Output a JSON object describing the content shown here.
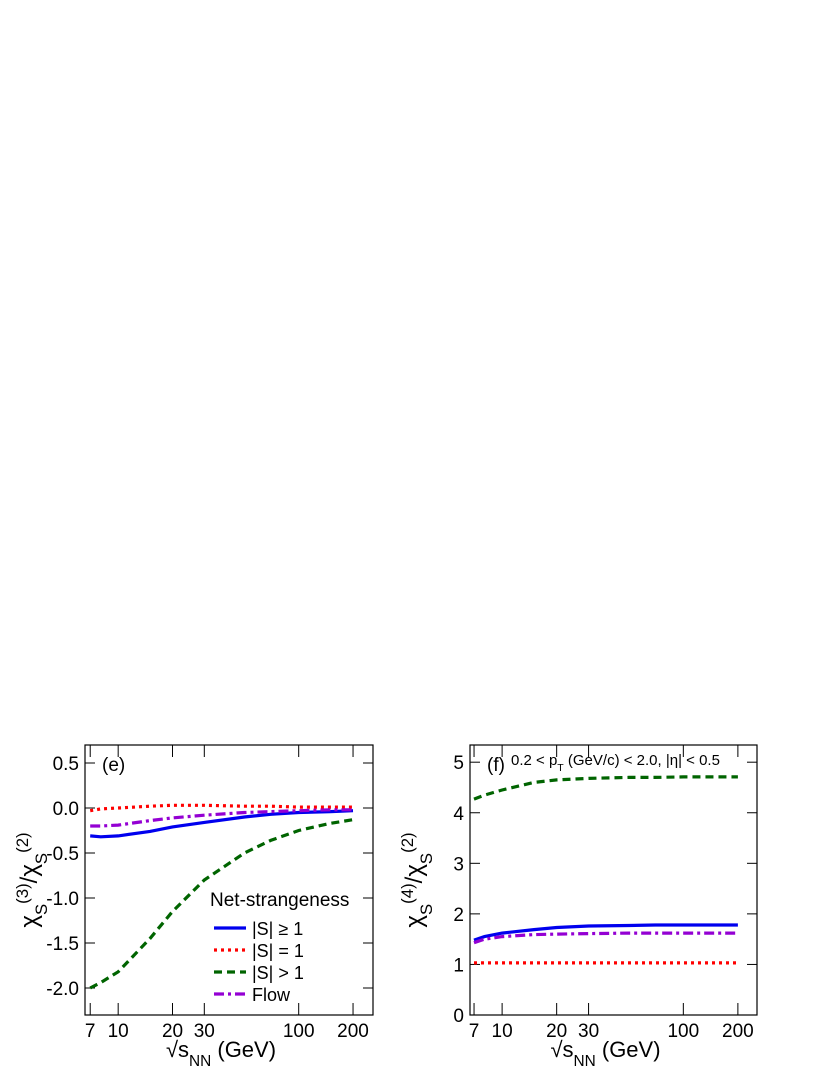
{
  "chart_data": [
    {
      "type": "line",
      "annotation": "(e)",
      "ylabel": [
        "χ",
        "S",
        "(3)",
        "/χ",
        "S",
        "(2)"
      ],
      "xlabel": [
        "√",
        "s",
        "NN",
        " (GeV)"
      ],
      "x": [
        7,
        8,
        10,
        15,
        20,
        30,
        50,
        70,
        100,
        150,
        200
      ],
      "xlim": [
        6.55,
        258
      ],
      "xticks": [
        7,
        10,
        20,
        30,
        100,
        200
      ],
      "xscale": "log",
      "ylim": [
        -2.3,
        0.7
      ],
      "yticks": [
        0.5,
        {
          "value": 0,
          "label": "0.0"
        },
        -0.5,
        {
          "value": -1,
          "label": "-1.0"
        },
        -1.5,
        {
          "value": -2,
          "label": "-2.0"
        }
      ],
      "legend_title": "Net-strangeness",
      "legend": "lower right",
      "series": [
        {
          "name": "|S| ≥ 1",
          "color": "#0000ee",
          "style": "solid",
          "values": [
            -0.31,
            -0.32,
            -0.31,
            -0.26,
            -0.21,
            -0.16,
            -0.1,
            -0.07,
            -0.05,
            -0.04,
            -0.03
          ]
        },
        {
          "name": "|S| = 1",
          "color": "#ff0000",
          "style": "dotted",
          "values": [
            -0.03,
            -0.01,
            0.0,
            0.02,
            0.03,
            0.03,
            0.02,
            0.02,
            0.01,
            0.01,
            0.01
          ]
        },
        {
          "name": "|S| > 1",
          "color": "#006400",
          "style": "dashed",
          "values": [
            -2.0,
            -1.94,
            -1.82,
            -1.45,
            -1.15,
            -0.8,
            -0.5,
            -0.36,
            -0.25,
            -0.17,
            -0.13
          ]
        },
        {
          "name": "Flow",
          "color": "#9400d3",
          "style": "dashdot",
          "values": [
            -0.2,
            -0.2,
            -0.19,
            -0.14,
            -0.11,
            -0.08,
            -0.05,
            -0.04,
            -0.03,
            -0.02,
            -0.02
          ]
        }
      ]
    },
    {
      "type": "line",
      "annotation": "(f)",
      "subtitle": [
        "0.2 < p",
        "T",
        " (GeV/c) < 2.0, |η| < 0.5"
      ],
      "ylabel": [
        "χ",
        "S",
        "(4)",
        "/χ",
        "S",
        "(2)"
      ],
      "xlabel": [
        "√",
        "s",
        "NN",
        " (GeV)"
      ],
      "x": [
        7,
        8,
        10,
        15,
        20,
        30,
        50,
        70,
        100,
        150,
        200
      ],
      "xlim": [
        6.65,
        255
      ],
      "xticks": [
        7,
        10,
        20,
        30,
        100,
        200
      ],
      "xscale": "log",
      "ylim": [
        0,
        5.34
      ],
      "yticks": [
        0,
        1,
        2,
        3,
        4,
        5
      ],
      "series": [
        {
          "color": "#0000ee",
          "style": "solid",
          "values": [
            1.48,
            1.55,
            1.62,
            1.69,
            1.73,
            1.76,
            1.77,
            1.78,
            1.78,
            1.78,
            1.78
          ]
        },
        {
          "color": "#ff0000",
          "style": "dotted",
          "values": [
            1.03,
            1.03,
            1.03,
            1.03,
            1.03,
            1.03,
            1.03,
            1.03,
            1.03,
            1.03,
            1.03
          ]
        },
        {
          "color": "#006400",
          "style": "dashed",
          "values": [
            4.27,
            4.35,
            4.45,
            4.6,
            4.65,
            4.68,
            4.7,
            4.7,
            4.71,
            4.71,
            4.71
          ]
        },
        {
          "color": "#9400d3",
          "style": "dashdot",
          "values": [
            1.43,
            1.5,
            1.55,
            1.59,
            1.6,
            1.61,
            1.62,
            1.62,
            1.62,
            1.62,
            1.62
          ]
        }
      ]
    }
  ]
}
